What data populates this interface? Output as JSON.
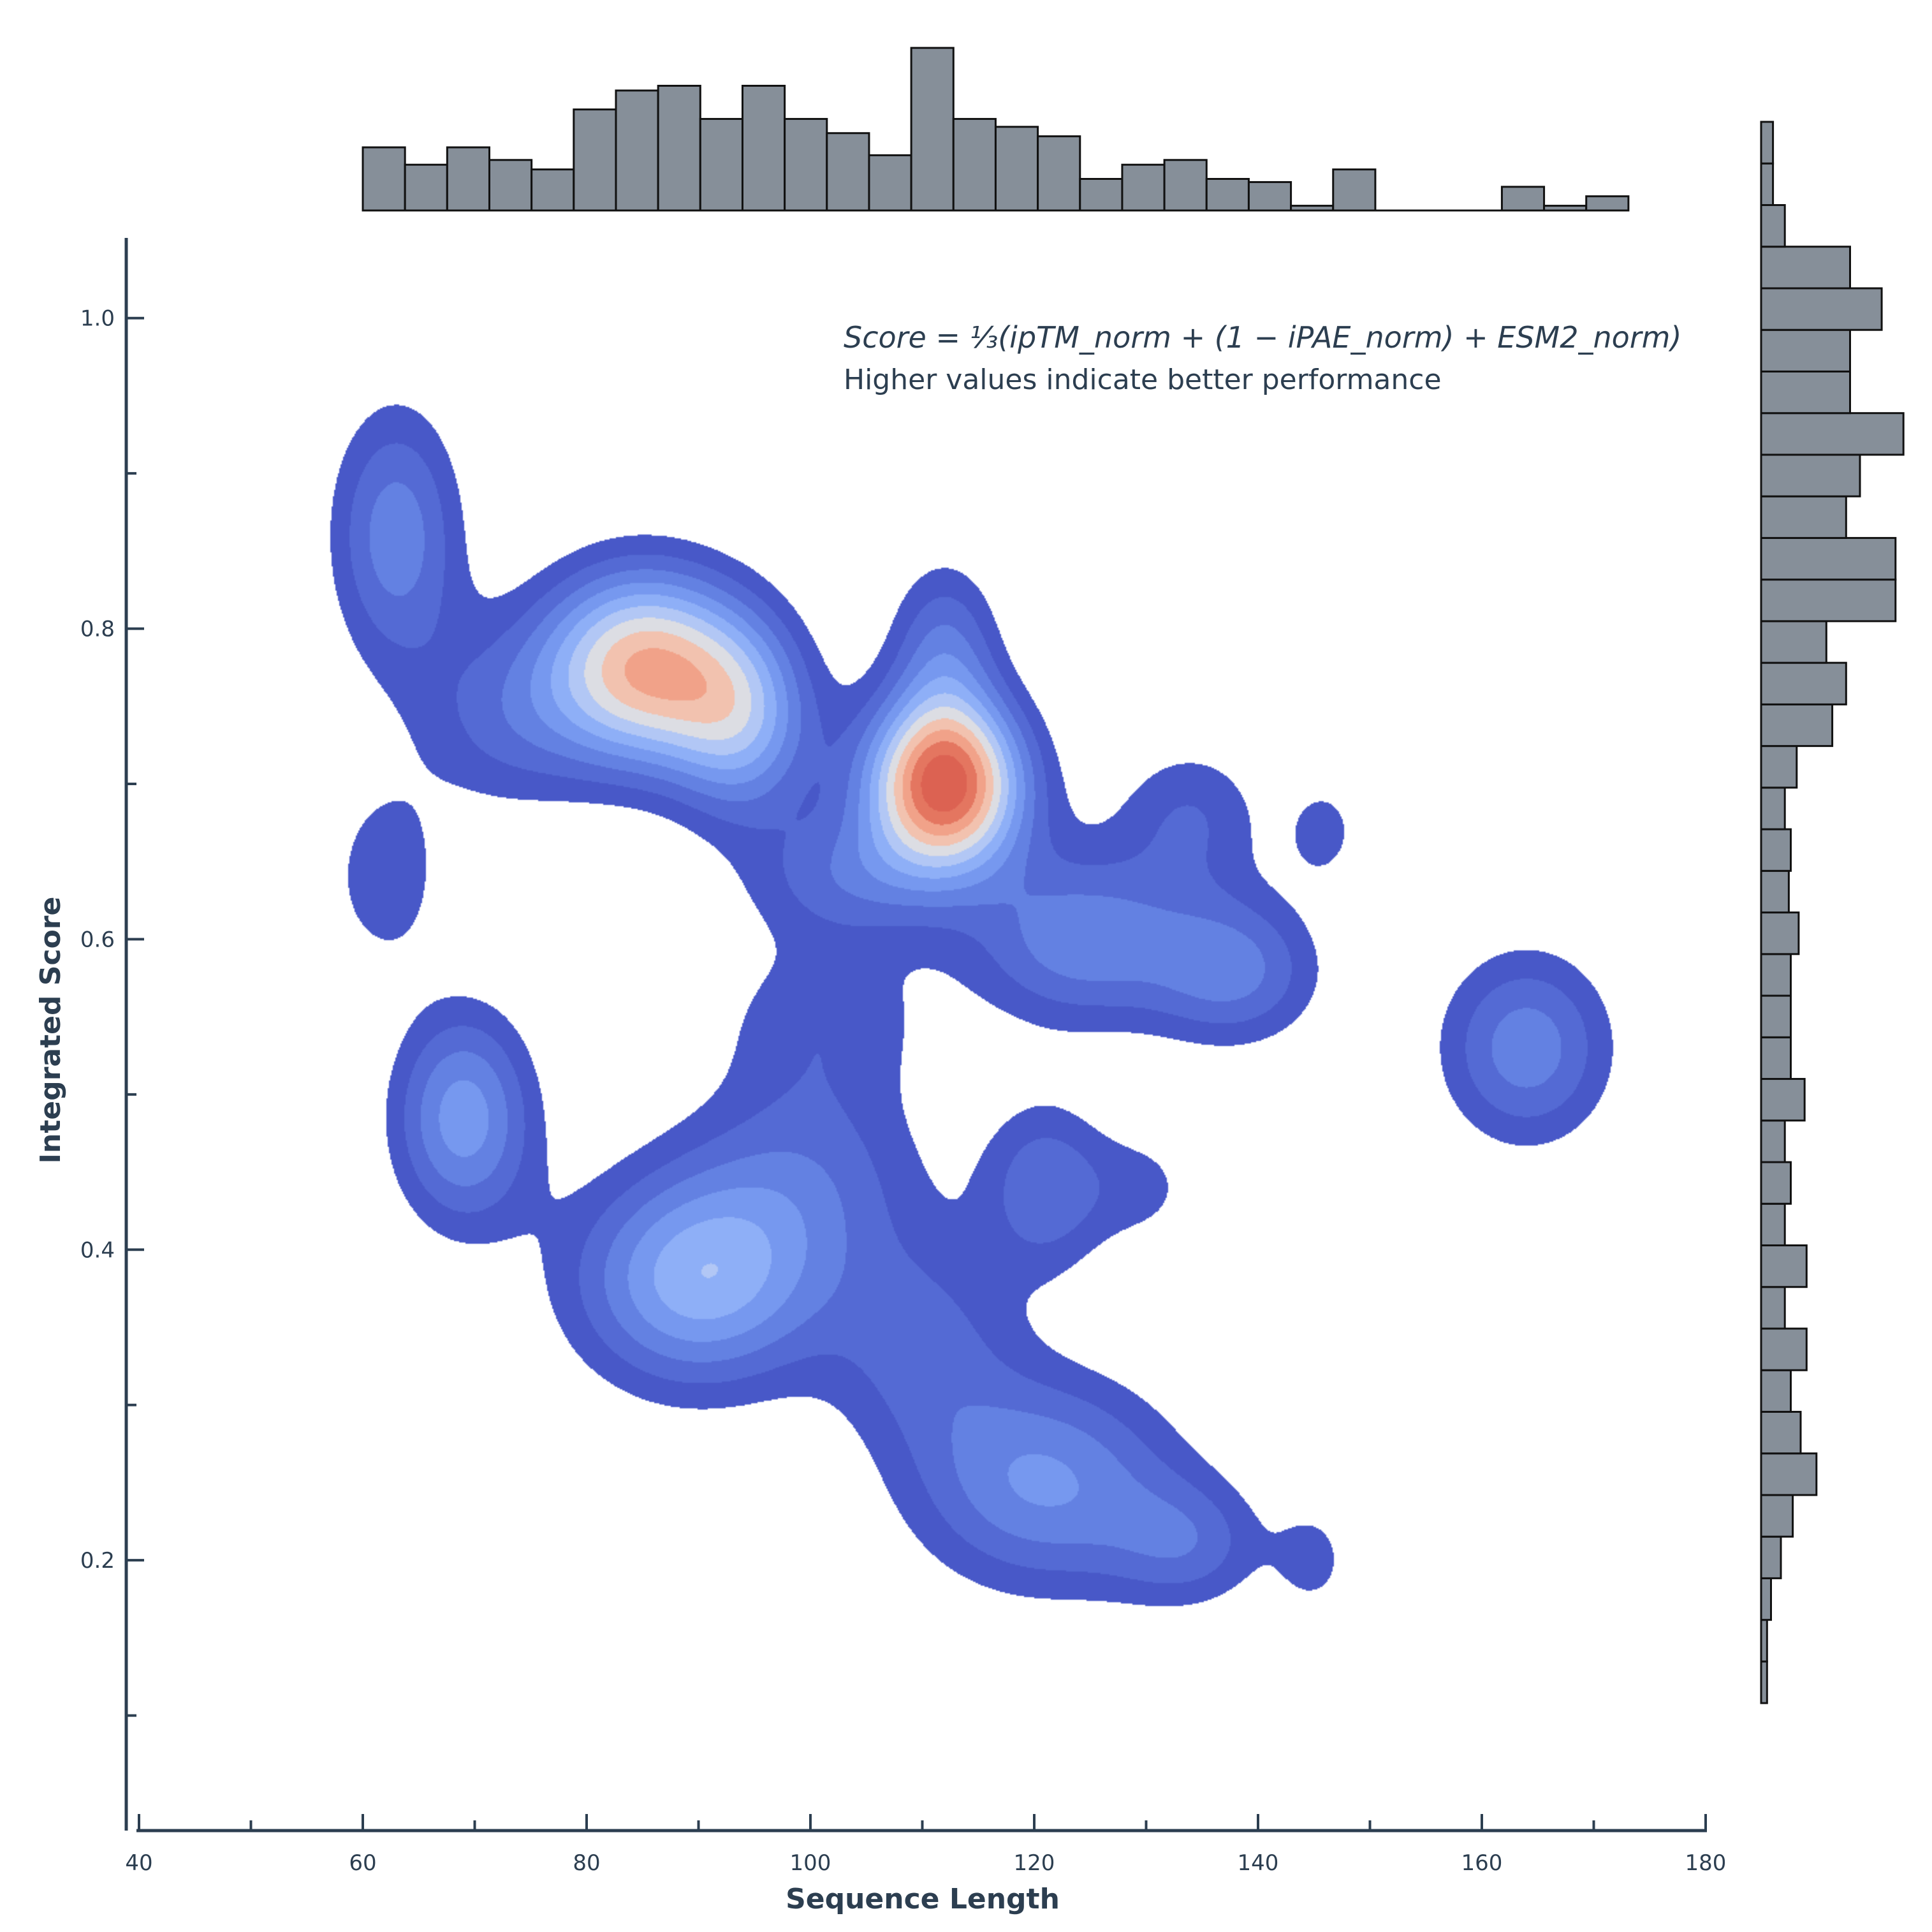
{
  "chart_data": {
    "type": "kde-contour-with-marginal-histograms",
    "xlabel": "Sequence Length",
    "ylabel": "Integrated Score",
    "xlim": [
      40,
      180
    ],
    "ylim": [
      0.03,
      1.05
    ],
    "x_ticks": [
      40,
      60,
      80,
      100,
      120,
      140,
      160,
      180
    ],
    "x_tick_labels": [
      "40",
      "60",
      "80",
      "100",
      "120",
      "140",
      "160",
      "180"
    ],
    "x_minor_ticks": [
      50,
      70,
      90,
      110,
      130,
      150,
      170
    ],
    "y_ticks": [
      0.2,
      0.4,
      0.6,
      0.8,
      1.0
    ],
    "y_tick_labels": [
      "0.2",
      "0.4",
      "0.6",
      "0.8",
      "1.0"
    ],
    "y_minor_ticks": [
      0.1,
      0.3,
      0.5,
      0.7,
      0.9
    ],
    "annotation": {
      "formula": "Score = ⅓(ipTM_norm + (1 − iPAE_norm) + ESM2_norm)",
      "note": "Higher values indicate better performance"
    },
    "colors": {
      "hist_fill": "#868f99",
      "hist_edge": "#111111",
      "axis": "#2c3e50",
      "kde_low": "#4a5cc8",
      "kde_mid": "#dcdde3",
      "kde_high": "#dc6352"
    },
    "kde_components": [
      {
        "x": 63,
        "y": 0.86,
        "sx": 4.2,
        "sy": 0.06,
        "w": 0.45
      },
      {
        "x": 72,
        "y": 0.74,
        "sx": 6.0,
        "sy": 0.045,
        "w": 0.25
      },
      {
        "x": 85,
        "y": 0.775,
        "sx": 6.5,
        "sy": 0.045,
        "w": 1.0
      },
      {
        "x": 94,
        "y": 0.74,
        "sx": 4.5,
        "sy": 0.045,
        "w": 0.55
      },
      {
        "x": 112,
        "y": 0.7,
        "sx": 5.0,
        "sy": 0.04,
        "w": 1.3
      },
      {
        "x": 103,
        "y": 0.64,
        "sx": 6.5,
        "sy": 0.03,
        "w": 0.3
      },
      {
        "x": 112,
        "y": 0.79,
        "sx": 3.5,
        "sy": 0.04,
        "w": 0.35
      },
      {
        "x": 124,
        "y": 0.6,
        "sx": 7.0,
        "sy": 0.04,
        "w": 0.45
      },
      {
        "x": 138,
        "y": 0.58,
        "sx": 5.5,
        "sy": 0.035,
        "w": 0.4
      },
      {
        "x": 69,
        "y": 0.485,
        "sx": 4.5,
        "sy": 0.05,
        "w": 0.55
      },
      {
        "x": 90,
        "y": 0.38,
        "sx": 8.0,
        "sy": 0.05,
        "w": 0.65
      },
      {
        "x": 100,
        "y": 0.45,
        "sx": 8.0,
        "sy": 0.05,
        "w": 0.28
      },
      {
        "x": 101,
        "y": 0.55,
        "sx": 7.0,
        "sy": 0.04,
        "w": 0.22
      },
      {
        "x": 110,
        "y": 0.34,
        "sx": 6.0,
        "sy": 0.05,
        "w": 0.28
      },
      {
        "x": 121,
        "y": 0.44,
        "sx": 4.0,
        "sy": 0.04,
        "w": 0.35
      },
      {
        "x": 121,
        "y": 0.25,
        "sx": 8.5,
        "sy": 0.05,
        "w": 0.5
      },
      {
        "x": 134,
        "y": 0.21,
        "sx": 5.0,
        "sy": 0.03,
        "w": 0.28
      },
      {
        "x": 134,
        "y": 0.68,
        "sx": 5.0,
        "sy": 0.035,
        "w": 0.26
      },
      {
        "x": 146,
        "y": 0.67,
        "sx": 2.5,
        "sy": 0.025,
        "w": 0.2
      },
      {
        "x": 164,
        "y": 0.53,
        "sx": 5.5,
        "sy": 0.045,
        "w": 0.45
      },
      {
        "x": 62,
        "y": 0.64,
        "sx": 3.5,
        "sy": 0.04,
        "w": 0.26
      },
      {
        "x": 145,
        "y": 0.2,
        "sx": 2.5,
        "sy": 0.025,
        "w": 0.2
      },
      {
        "x": 130,
        "y": 0.44,
        "sx": 4.0,
        "sy": 0.03,
        "w": 0.18
      }
    ],
    "top_histogram": {
      "bin_start": 60,
      "bin_width": 3.77,
      "counts": [
        20,
        14.5,
        20,
        16,
        13,
        32,
        38,
        39.5,
        29,
        39.5,
        29,
        24.5,
        17.5,
        51.5,
        29,
        26.5,
        23.5,
        10,
        14.5,
        16,
        10,
        9,
        1.5,
        13,
        0,
        0,
        0,
        7.5,
        1.5,
        4.5
      ]
    },
    "right_histogram": {
      "bin_start": 0.108,
      "bin_width": 0.0268,
      "counts": [
        0.3,
        0.3,
        0.5,
        1.0,
        1.6,
        2.8,
        2.0,
        1.5,
        2.3,
        1.2,
        2.3,
        1.2,
        1.5,
        1.2,
        2.2,
        1.5,
        1.5,
        1.5,
        1.9,
        1.4,
        1.5,
        1.2,
        1.8,
        3.6,
        4.3,
        3.3,
        6.8,
        6.8,
        4.3,
        5.0,
        7.2,
        4.5,
        4.5,
        6.1,
        4.5,
        1.2,
        0.6,
        0.6
      ]
    }
  }
}
